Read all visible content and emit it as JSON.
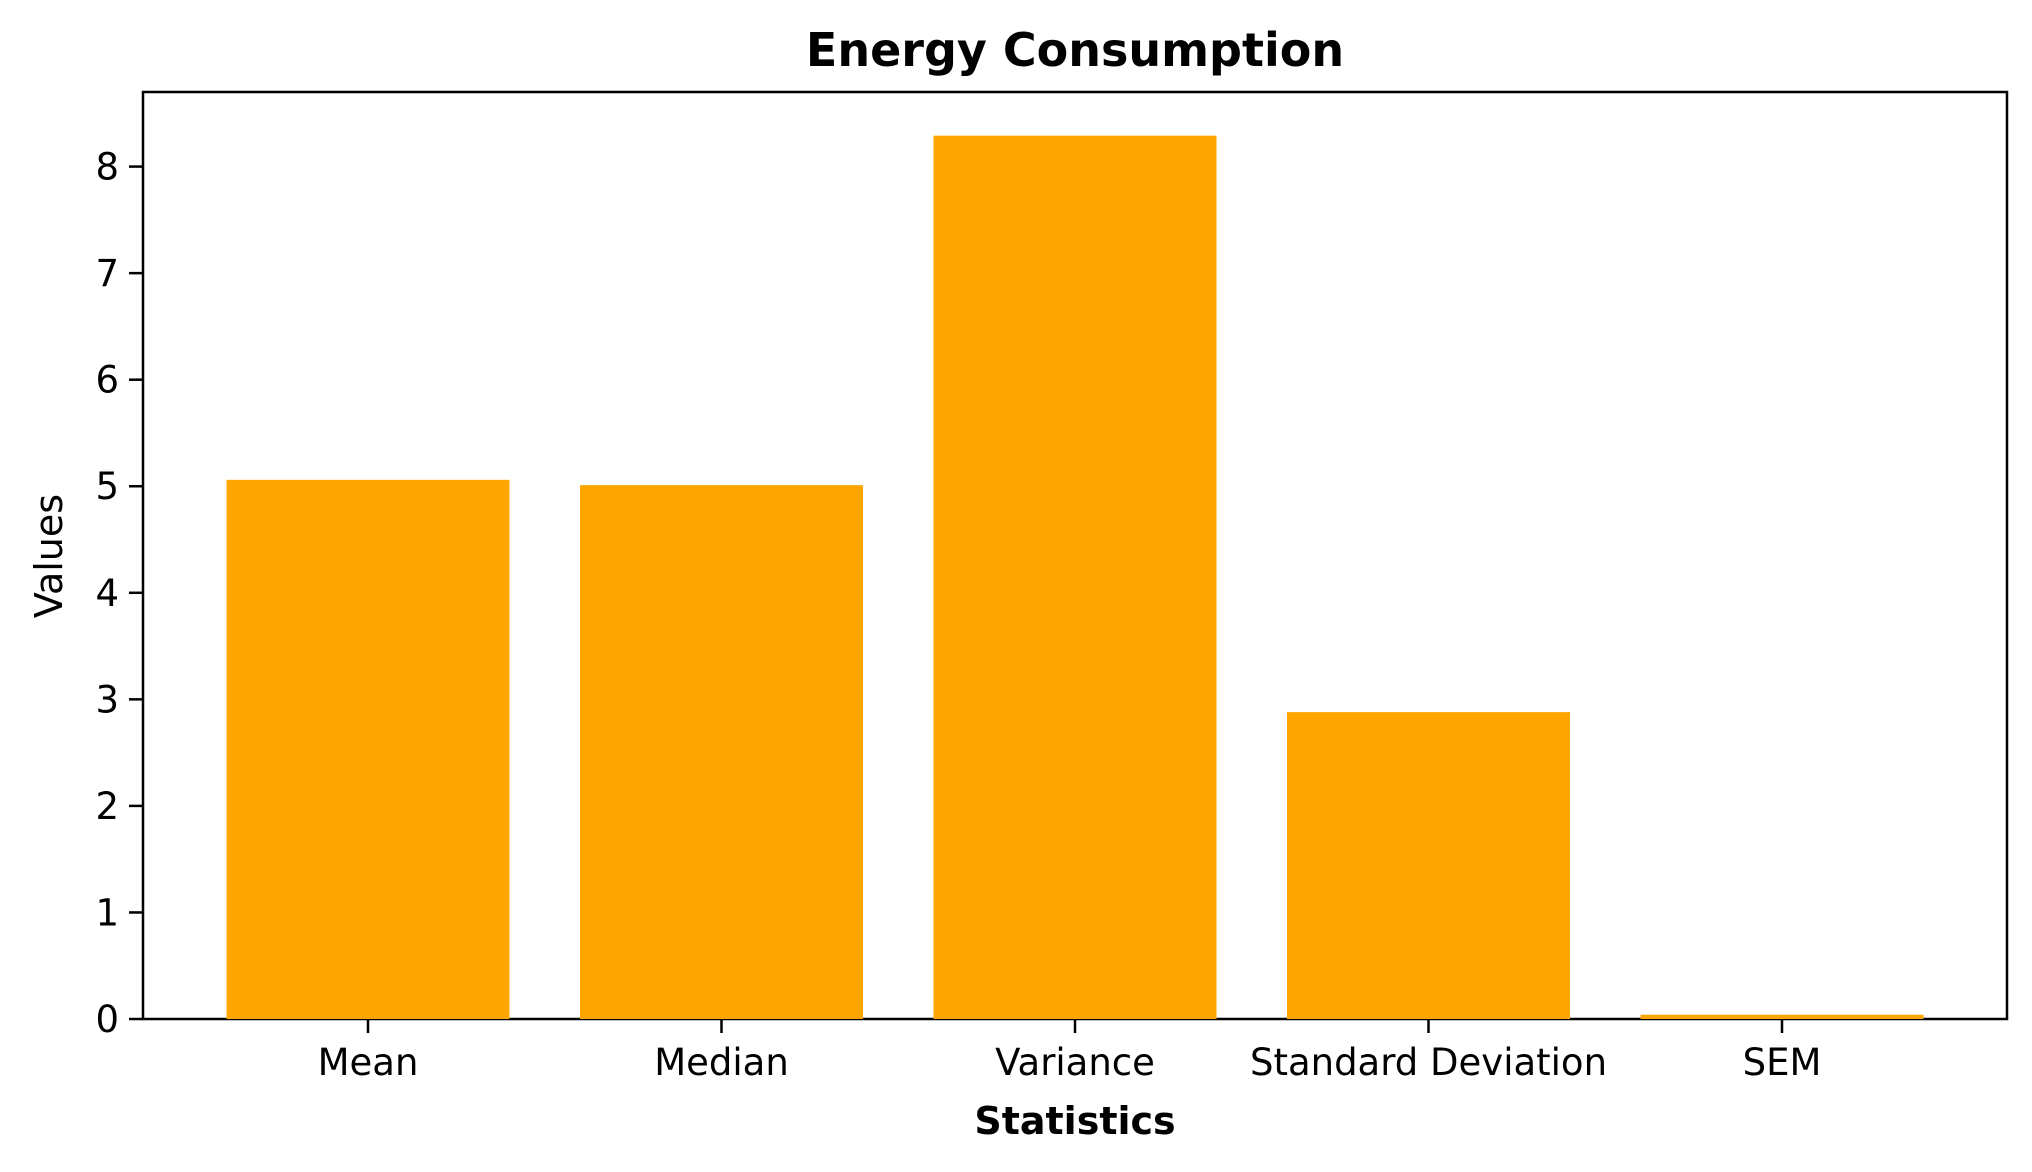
{
  "chart_data": {
    "type": "bar",
    "title": "Energy Consumption",
    "xlabel": "Statistics",
    "ylabel": "Values",
    "categories": [
      "Mean",
      "Median",
      "Variance",
      "Standard Deviation",
      "SEM"
    ],
    "values": [
      5.06,
      5.01,
      8.29,
      2.88,
      0.04
    ],
    "ylim": [
      0,
      8.7
    ],
    "yticks": [
      0,
      1,
      2,
      3,
      4,
      5,
      6,
      7,
      8
    ],
    "bar_color": "#ffa500",
    "grid": false,
    "legend": "none"
  }
}
